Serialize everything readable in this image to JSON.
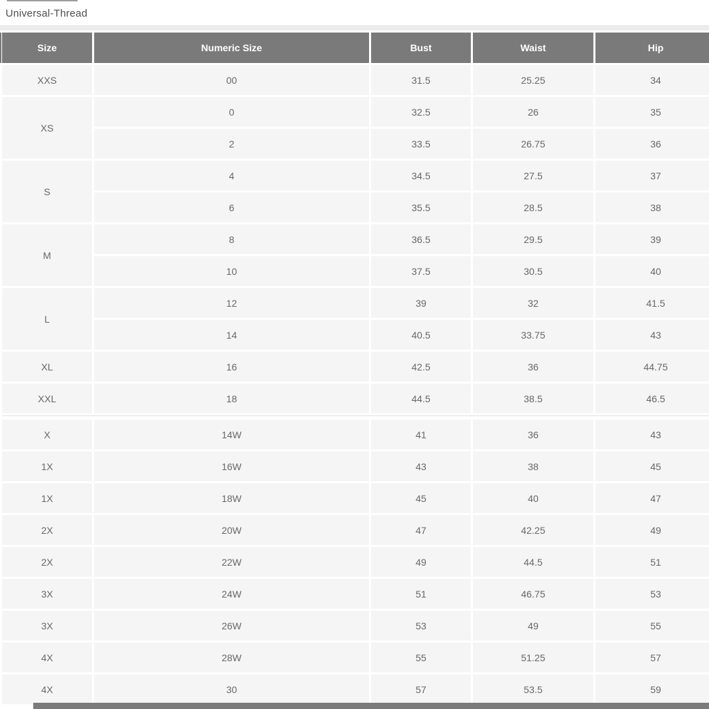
{
  "page": {
    "title": "Universal-Thread"
  },
  "table": {
    "columns": [
      "Size",
      "Numeric Size",
      "Bust",
      "Waist",
      "Hip"
    ],
    "groups": [
      {
        "size": "XXS",
        "rows": [
          [
            "00",
            "31.5",
            "25.25",
            "34"
          ]
        ]
      },
      {
        "size": "XS",
        "rows": [
          [
            "0",
            "32.5",
            "26",
            "35"
          ],
          [
            "2",
            "33.5",
            "26.75",
            "36"
          ]
        ]
      },
      {
        "size": "S",
        "rows": [
          [
            "4",
            "34.5",
            "27.5",
            "37"
          ],
          [
            "6",
            "35.5",
            "28.5",
            "38"
          ]
        ]
      },
      {
        "size": "M",
        "rows": [
          [
            "8",
            "36.5",
            "29.5",
            "39"
          ],
          [
            "10",
            "37.5",
            "30.5",
            "40"
          ]
        ]
      },
      {
        "size": "L",
        "rows": [
          [
            "12",
            "39",
            "32",
            "41.5"
          ],
          [
            "14",
            "40.5",
            "33.75",
            "43"
          ]
        ]
      },
      {
        "size": "XL",
        "rows": [
          [
            "16",
            "42.5",
            "36",
            "44.75"
          ]
        ]
      },
      {
        "size": "XXL",
        "rows": [
          [
            "18",
            "44.5",
            "38.5",
            "46.5"
          ]
        ]
      },
      {
        "size": "X",
        "section_start": true,
        "rows": [
          [
            "14W",
            "41",
            "36",
            "43"
          ]
        ]
      },
      {
        "size": "1X",
        "rows": [
          [
            "16W",
            "43",
            "38",
            "45"
          ]
        ]
      },
      {
        "size": "1X",
        "rows": [
          [
            "18W",
            "45",
            "40",
            "47"
          ]
        ]
      },
      {
        "size": "2X",
        "rows": [
          [
            "20W",
            "47",
            "42.25",
            "49"
          ]
        ]
      },
      {
        "size": "2X",
        "rows": [
          [
            "22W",
            "49",
            "44.5",
            "51"
          ]
        ]
      },
      {
        "size": "3X",
        "rows": [
          [
            "24W",
            "51",
            "46.75",
            "53"
          ]
        ]
      },
      {
        "size": "3X",
        "rows": [
          [
            "26W",
            "53",
            "49",
            "55"
          ]
        ]
      },
      {
        "size": "4X",
        "rows": [
          [
            "28W",
            "55",
            "51.25",
            "57"
          ]
        ]
      },
      {
        "size": "4X",
        "rows": [
          [
            "30",
            "57",
            "53.5",
            "59"
          ]
        ]
      }
    ]
  },
  "colors": {
    "header_bg": "#7a7a7a",
    "header_text": "#ffffff",
    "cell_bg": "#f5f5f5",
    "cell_text": "#686868",
    "divider_strip": "#ececec",
    "next_table_bar": "#7b7b7b",
    "title_text": "#4e4e4e"
  }
}
